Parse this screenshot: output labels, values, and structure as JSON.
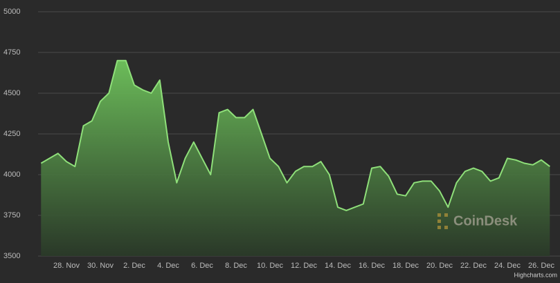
{
  "chart_data": {
    "type": "area",
    "categories": [
      null,
      null,
      null,
      "28. Nov",
      null,
      null,
      null,
      "30. Nov",
      null,
      null,
      null,
      "2. Dec",
      null,
      null,
      null,
      "4. Dec",
      null,
      null,
      null,
      "6. Dec",
      null,
      null,
      null,
      "8. Dec",
      null,
      null,
      null,
      "10. Dec",
      null,
      null,
      null,
      "12. Dec",
      null,
      null,
      null,
      "14. Dec",
      null,
      null,
      null,
      "16. Dec",
      null,
      null,
      null,
      "18. Dec",
      null,
      null,
      null,
      "20. Dec",
      null,
      null,
      null,
      "22. Dec",
      null,
      null,
      null,
      "24. Dec",
      null,
      null,
      null,
      "26. Dec",
      null
    ],
    "values": [
      4070,
      4100,
      4130,
      4080,
      4050,
      4300,
      4330,
      4450,
      4500,
      4700,
      4700,
      4550,
      4520,
      4500,
      4580,
      4200,
      3950,
      4100,
      4200,
      4100,
      4000,
      4380,
      4400,
      4350,
      4350,
      4400,
      4250,
      4100,
      4050,
      3950,
      4020,
      4050,
      4050,
      4080,
      4000,
      3800,
      3780,
      3800,
      3820,
      4040,
      4050,
      3990,
      3880,
      3870,
      3950,
      3960,
      3960,
      3900,
      3800,
      3950,
      4020,
      4040,
      4020,
      3960,
      3980,
      4100,
      4090,
      4070,
      4060,
      4090,
      4050
    ],
    "color": "#8fe07a",
    "ylim": [
      3500,
      5000
    ],
    "yticks": [
      3500,
      3750,
      4000,
      4250,
      4500,
      4750,
      5000
    ],
    "grid": true,
    "watermark": "CoinDesk",
    "credit": "Highcharts.com"
  }
}
